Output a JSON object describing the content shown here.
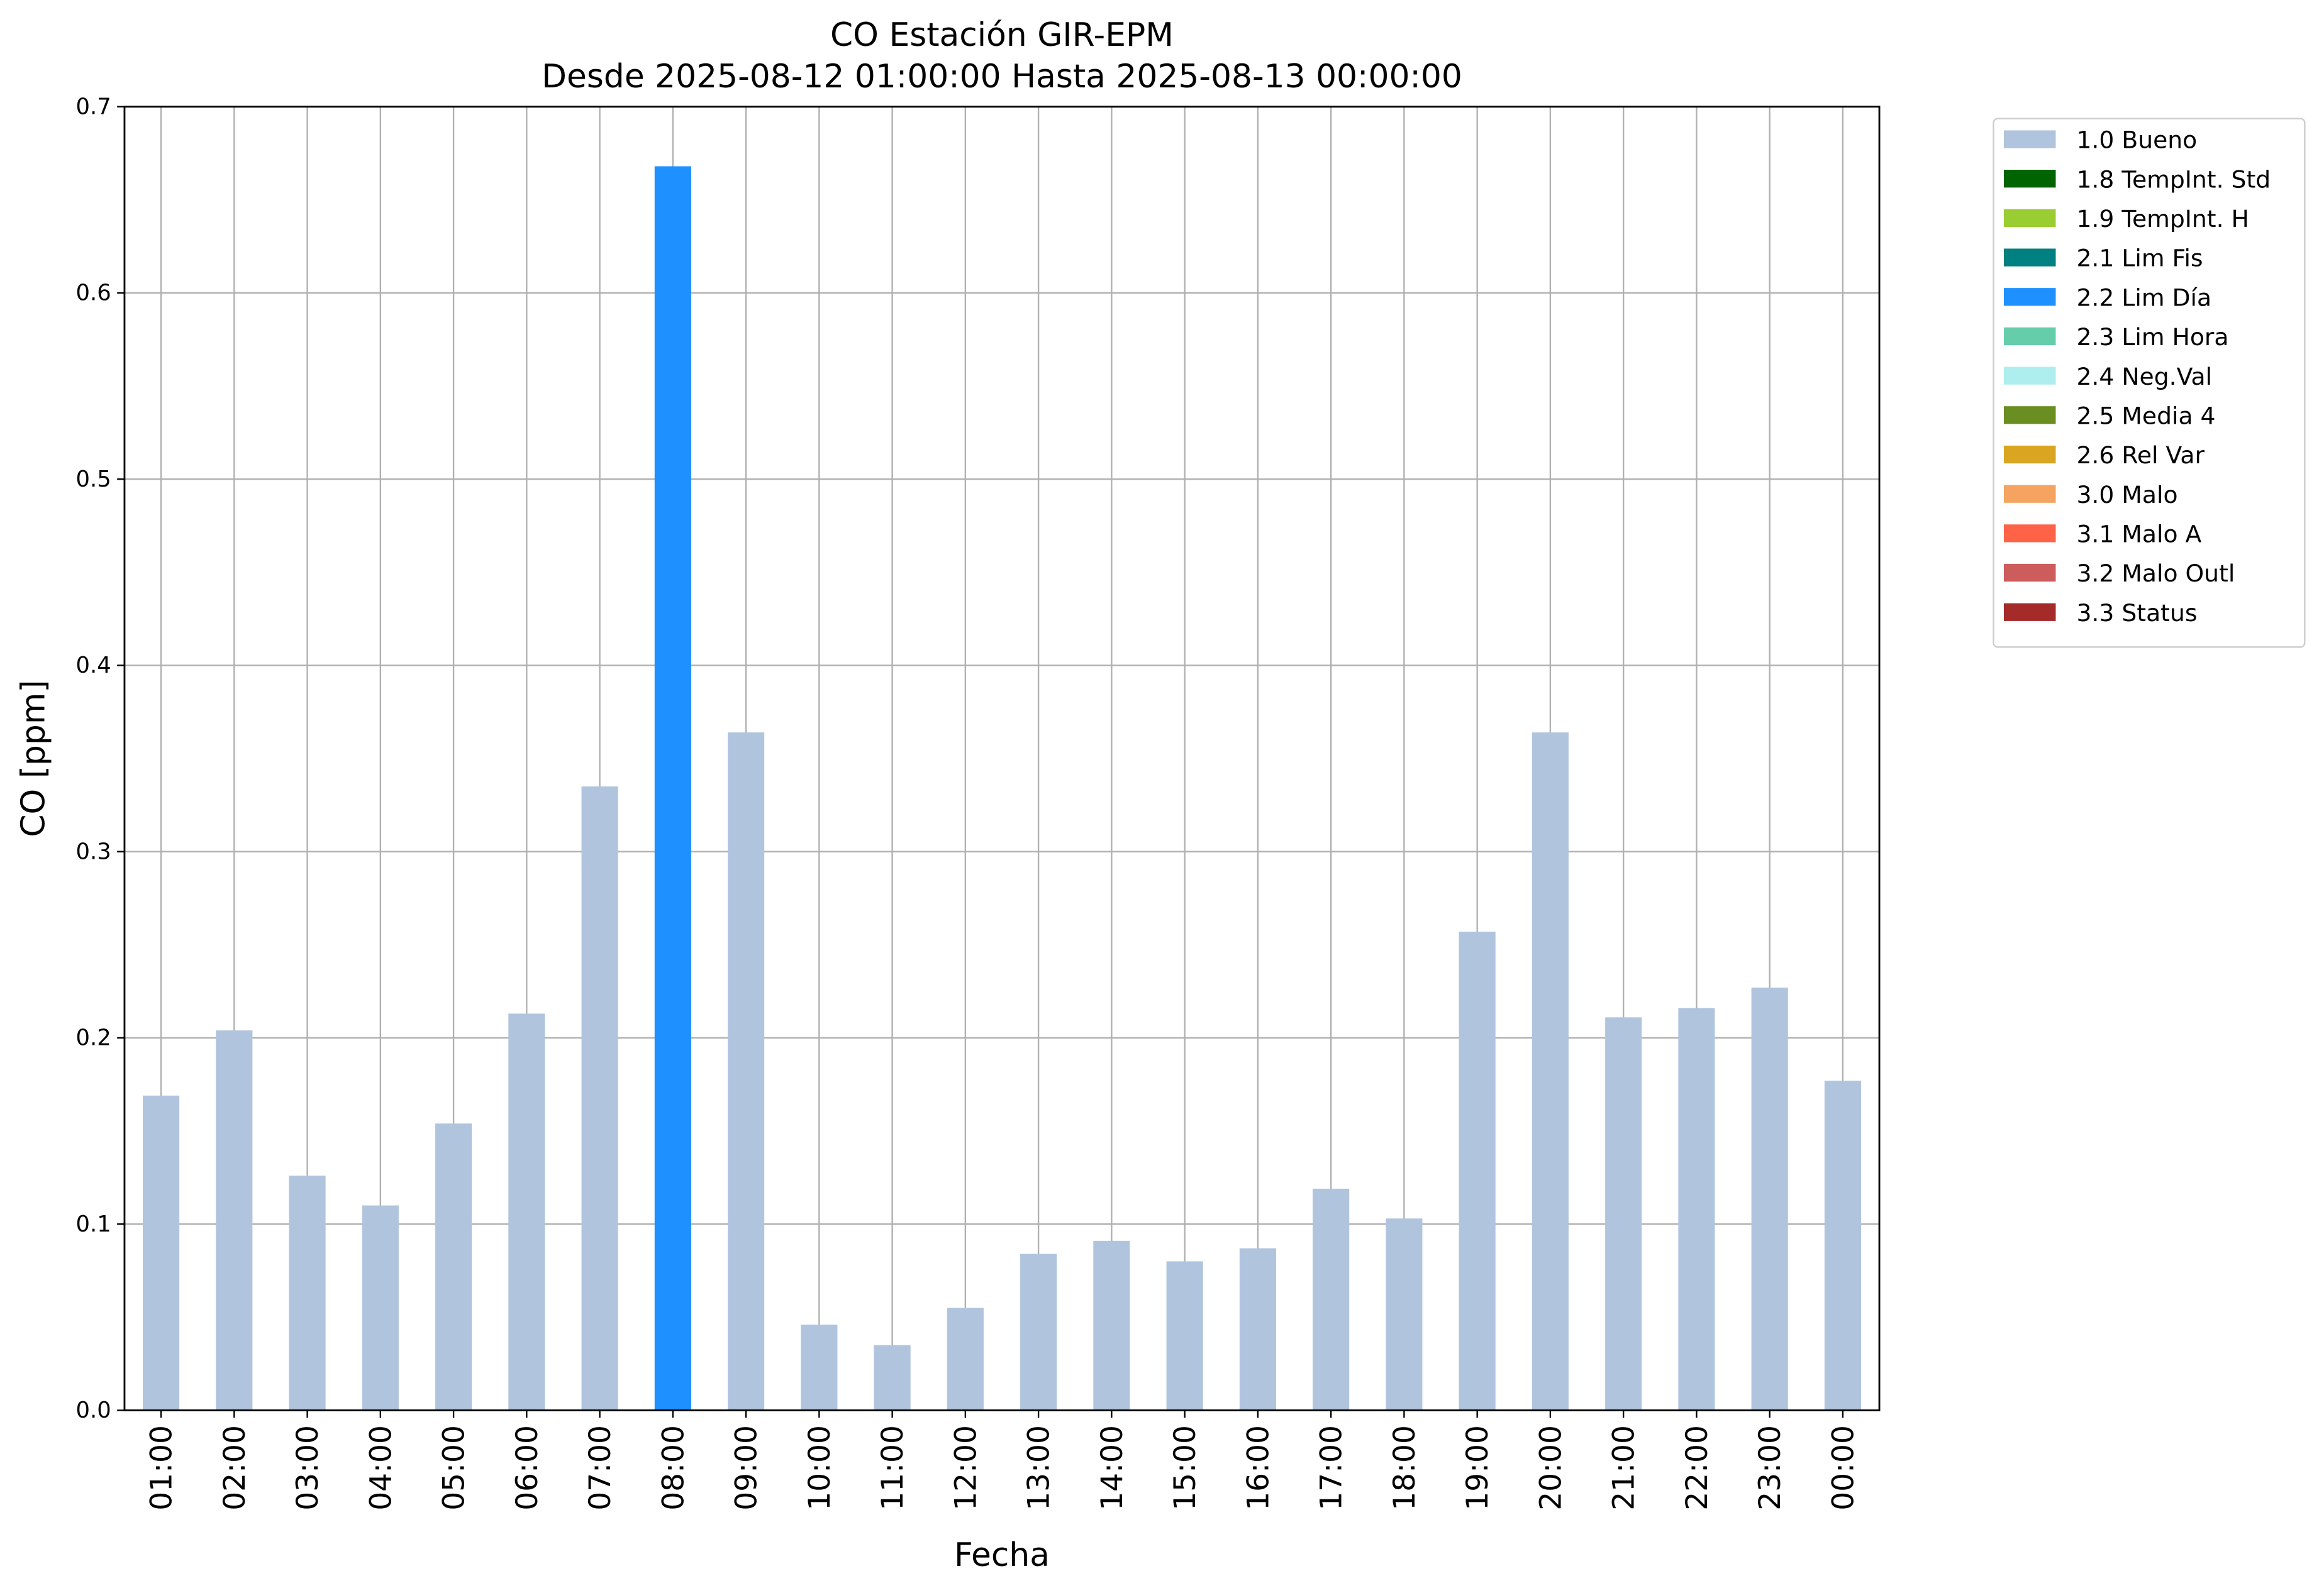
{
  "chart_data": {
    "type": "bar",
    "stacked": true,
    "title": "CO Estación GIR-EPM",
    "subtitle": "Desde 2025-08-12 01:00:00 Hasta 2025-08-13 00:00:00",
    "x_label": "Fecha",
    "y_label": "CO [ppm]",
    "categories": [
      "01:00",
      "02:00",
      "03:00",
      "04:00",
      "05:00",
      "06:00",
      "07:00",
      "08:00",
      "09:00",
      "10:00",
      "11:00",
      "12:00",
      "13:00",
      "14:00",
      "15:00",
      "16:00",
      "17:00",
      "18:00",
      "19:00",
      "20:00",
      "21:00",
      "22:00",
      "23:00",
      "00:00"
    ],
    "series": [
      {
        "name": "1.0 Bueno",
        "color": "#b0c4de",
        "values": [
          0.169,
          0.204,
          0.126,
          0.11,
          0.154,
          0.213,
          0.335,
          null,
          0.364,
          0.046,
          0.035,
          0.055,
          0.084,
          0.091,
          0.08,
          0.087,
          0.119,
          0.103,
          0.257,
          0.364,
          0.211,
          0.216,
          0.227,
          0.177
        ]
      },
      {
        "name": "1.8 TempInt. Std",
        "color": "#006400",
        "values": [
          null,
          null,
          null,
          null,
          null,
          null,
          null,
          null,
          null,
          null,
          null,
          null,
          null,
          null,
          null,
          null,
          null,
          null,
          null,
          null,
          null,
          null,
          null,
          null
        ]
      },
      {
        "name": "1.9 TempInt. H",
        "color": "#9acd32",
        "values": [
          null,
          null,
          null,
          null,
          null,
          null,
          null,
          null,
          null,
          null,
          null,
          null,
          null,
          null,
          null,
          null,
          null,
          null,
          null,
          null,
          null,
          null,
          null,
          null
        ]
      },
      {
        "name": "2.1 Lim Fis",
        "color": "#008080",
        "values": [
          null,
          null,
          null,
          null,
          null,
          null,
          null,
          null,
          null,
          null,
          null,
          null,
          null,
          null,
          null,
          null,
          null,
          null,
          null,
          null,
          null,
          null,
          null,
          null
        ]
      },
      {
        "name": "2.2 Lim Día",
        "color": "#1e90ff",
        "values": [
          null,
          null,
          null,
          null,
          null,
          null,
          null,
          0.668,
          null,
          null,
          null,
          null,
          null,
          null,
          null,
          null,
          null,
          null,
          null,
          null,
          null,
          null,
          null,
          null
        ]
      },
      {
        "name": "2.3 Lim Hora",
        "color": "#66cdaa",
        "values": [
          null,
          null,
          null,
          null,
          null,
          null,
          null,
          null,
          null,
          null,
          null,
          null,
          null,
          null,
          null,
          null,
          null,
          null,
          null,
          null,
          null,
          null,
          null,
          null
        ]
      },
      {
        "name": "2.4 Neg.Val",
        "color": "#afeeee",
        "values": [
          null,
          null,
          null,
          null,
          null,
          null,
          null,
          null,
          null,
          null,
          null,
          null,
          null,
          null,
          null,
          null,
          null,
          null,
          null,
          null,
          null,
          null,
          null,
          null
        ]
      },
      {
        "name": "2.5 Media 4",
        "color": "#6b8e23",
        "values": [
          null,
          null,
          null,
          null,
          null,
          null,
          null,
          null,
          null,
          null,
          null,
          null,
          null,
          null,
          null,
          null,
          null,
          null,
          null,
          null,
          null,
          null,
          null,
          null
        ]
      },
      {
        "name": "2.6 Rel Var",
        "color": "#daa520",
        "values": [
          null,
          null,
          null,
          null,
          null,
          null,
          null,
          null,
          null,
          null,
          null,
          null,
          null,
          null,
          null,
          null,
          null,
          null,
          null,
          null,
          null,
          null,
          null,
          null
        ]
      },
      {
        "name": "3.0 Malo",
        "color": "#f4a460",
        "values": [
          null,
          null,
          null,
          null,
          null,
          null,
          null,
          null,
          null,
          null,
          null,
          null,
          null,
          null,
          null,
          null,
          null,
          null,
          null,
          null,
          null,
          null,
          null,
          null
        ]
      },
      {
        "name": "3.1 Malo A",
        "color": "#ff6347",
        "values": [
          null,
          null,
          null,
          null,
          null,
          null,
          null,
          null,
          null,
          null,
          null,
          null,
          null,
          null,
          null,
          null,
          null,
          null,
          null,
          null,
          null,
          null,
          null,
          null
        ]
      },
      {
        "name": "3.2 Malo Outl",
        "color": "#cd5c5c",
        "values": [
          null,
          null,
          null,
          null,
          null,
          null,
          null,
          null,
          null,
          null,
          null,
          null,
          null,
          null,
          null,
          null,
          null,
          null,
          null,
          null,
          null,
          null,
          null,
          null
        ]
      },
      {
        "name": "3.3 Status",
        "color": "#a52a2a",
        "values": [
          null,
          null,
          null,
          null,
          null,
          null,
          null,
          null,
          null,
          null,
          null,
          null,
          null,
          null,
          null,
          null,
          null,
          null,
          null,
          null,
          null,
          null,
          null,
          null
        ]
      }
    ],
    "ylim": [
      0,
      0.7
    ],
    "yticks": [
      {
        "value": 0,
        "label": "0.0"
      },
      0.1,
      0.2,
      0.3,
      0.4,
      0.5,
      0.6,
      0.7
    ],
    "grid": true,
    "legend": "outside-upper-right"
  }
}
